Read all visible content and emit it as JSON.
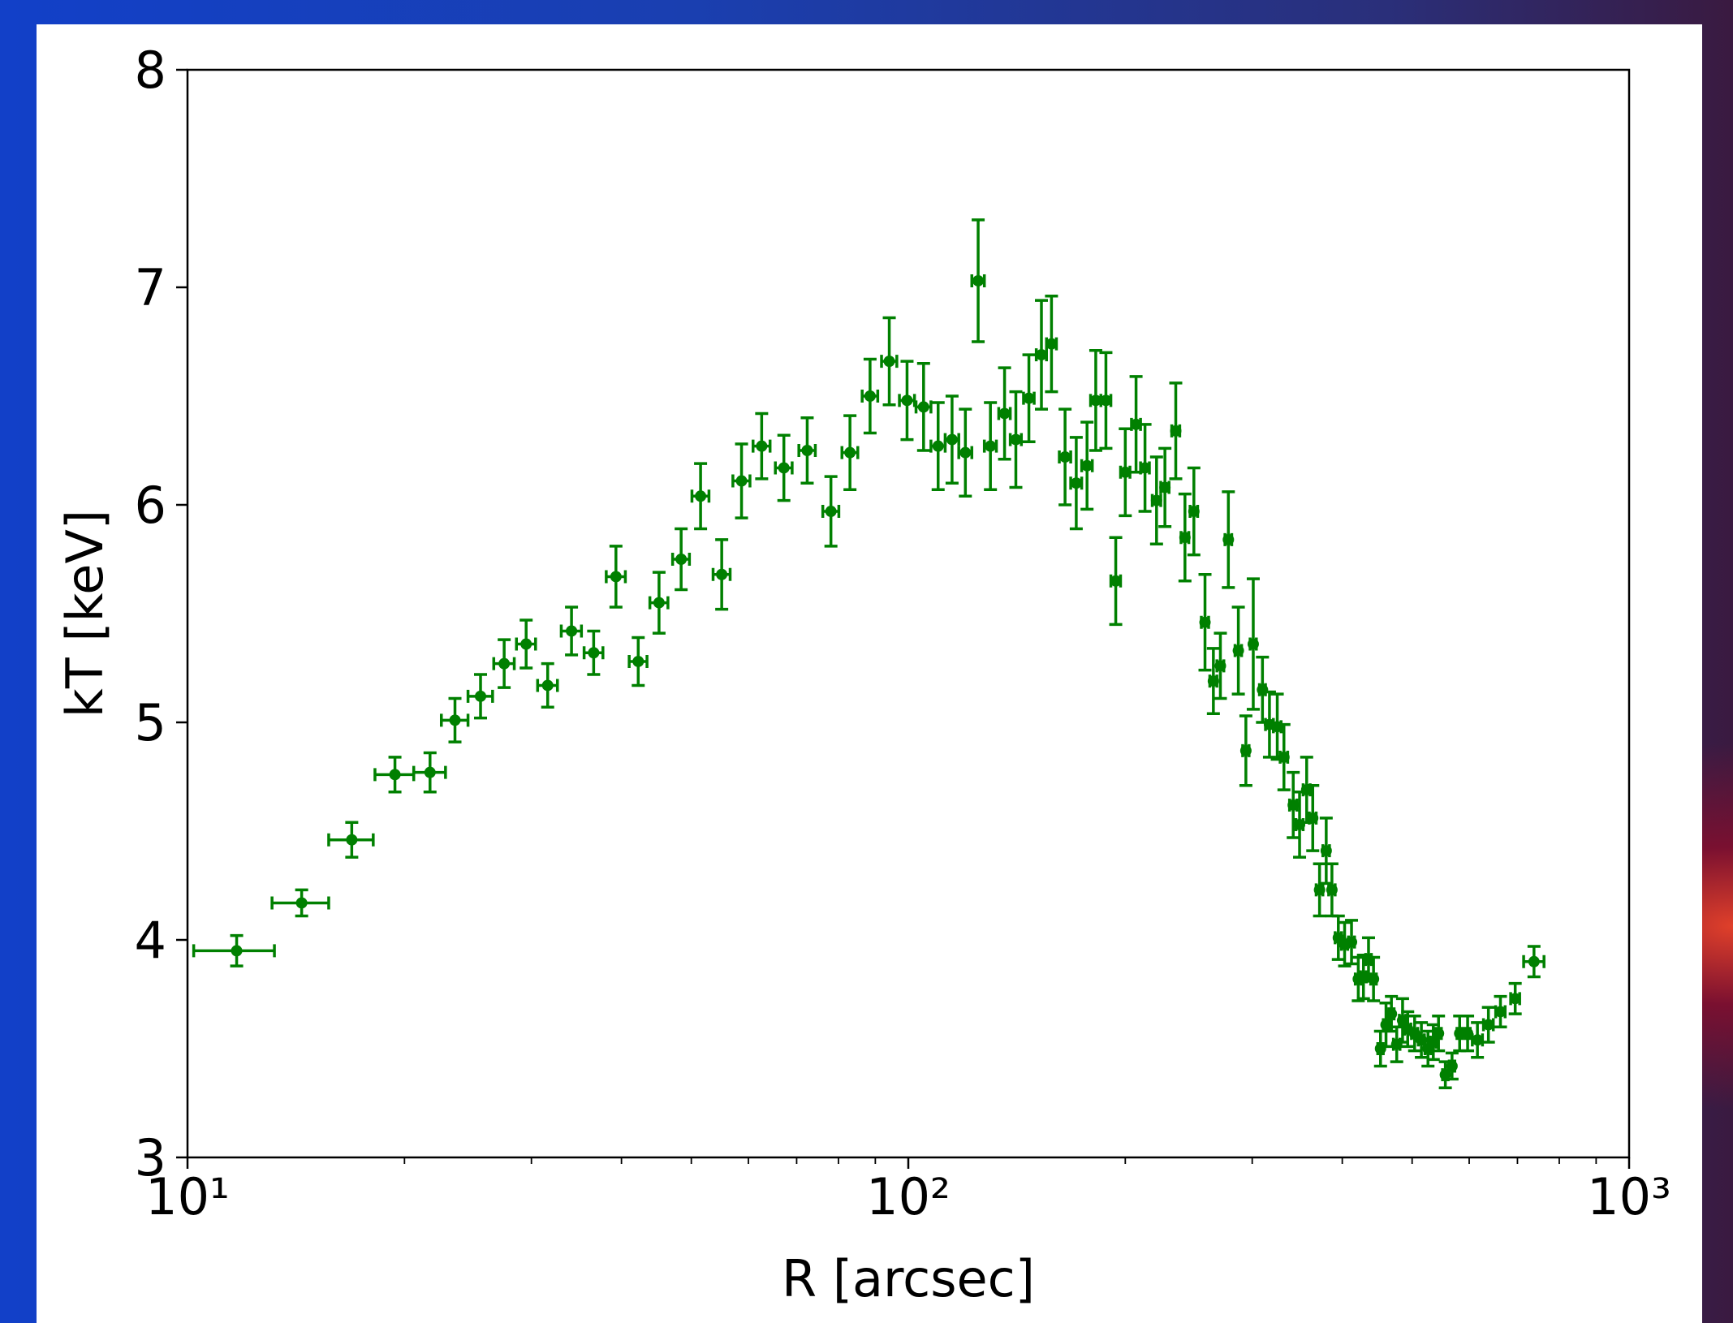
{
  "chart_data": {
    "type": "scatter",
    "xlabel": "R [arcsec]",
    "ylabel": "kT [keV]",
    "xscale": "log",
    "xlim": [
      10,
      1000
    ],
    "ylim": [
      3,
      8
    ],
    "xticks": [
      {
        "value": 10,
        "label": "10¹"
      },
      {
        "value": 100,
        "label": "10²"
      },
      {
        "value": 1000,
        "label": "10³"
      }
    ],
    "xminorticks": [
      20,
      30,
      40,
      50,
      60,
      70,
      80,
      90,
      200,
      300,
      400,
      500,
      600,
      700,
      800,
      900
    ],
    "yticks": [
      3,
      4,
      5,
      6,
      7,
      8
    ],
    "series": [
      {
        "color": "#008000",
        "x": [
          11.7,
          14.4,
          16.9,
          19.4,
          21.7,
          23.5,
          25.5,
          27.5,
          29.5,
          31.6,
          34.1,
          36.6,
          39.3,
          42.2,
          45.1,
          48.4,
          51.5,
          55.1,
          58.7,
          62.6,
          67.2,
          72.4,
          78.1,
          83.0,
          88.5,
          94.1,
          99.6,
          105,
          110,
          115,
          120,
          125,
          130,
          136,
          141,
          147,
          153,
          158,
          165,
          171,
          177,
          182,
          188,
          194,
          200,
          207,
          213,
          221,
          227,
          235,
          242,
          249,
          258,
          265,
          271,
          278,
          287,
          294,
          301,
          310,
          317,
          325,
          332,
          342,
          349,
          357,
          364,
          372,
          380,
          387,
          395,
          403,
          412,
          421,
          428,
          435,
          442,
          452,
          460,
          468,
          476,
          485,
          493,
          504,
          515,
          526,
          535,
          544,
          556,
          568,
          582,
          597,
          616,
          638,
          663,
          695,
          738
        ],
        "values": [
          3.95,
          4.17,
          4.46,
          4.76,
          4.77,
          5.01,
          5.12,
          5.27,
          5.36,
          5.17,
          5.42,
          5.32,
          5.67,
          5.28,
          5.55,
          5.75,
          6.04,
          5.68,
          6.11,
          6.27,
          6.17,
          6.25,
          5.97,
          6.24,
          6.5,
          6.66,
          6.48,
          6.45,
          6.27,
          6.3,
          6.24,
          7.03,
          6.27,
          6.42,
          6.3,
          6.49,
          6.69,
          6.74,
          6.22,
          6.1,
          6.18,
          6.48,
          6.48,
          5.65,
          6.15,
          6.37,
          6.17,
          6.02,
          6.08,
          6.34,
          5.85,
          5.97,
          5.46,
          5.19,
          5.26,
          5.84,
          5.33,
          4.87,
          5.36,
          5.15,
          4.99,
          4.98,
          4.84,
          4.62,
          4.53,
          4.69,
          4.56,
          4.23,
          4.41,
          4.23,
          4.01,
          3.98,
          3.99,
          3.82,
          3.83,
          3.91,
          3.82,
          3.5,
          3.61,
          3.66,
          3.52,
          3.63,
          3.59,
          3.57,
          3.54,
          3.5,
          3.53,
          3.57,
          3.38,
          3.42,
          3.57,
          3.57,
          3.54,
          3.61,
          3.67,
          3.73,
          3.9
        ],
        "xerr": [
          1.5,
          1.3,
          1.2,
          1.2,
          1.1,
          1.0,
          1.0,
          0.9,
          0.9,
          1.0,
          1.1,
          1.1,
          1.2,
          1.2,
          1.3,
          1.3,
          1.4,
          1.5,
          1.6,
          1.7,
          1.8,
          1.9,
          2.0,
          2.1,
          2.2,
          2.3,
          2.4,
          2.5,
          2.5,
          2.5,
          2.5,
          2.5,
          2.5,
          2.5,
          2.5,
          2.5,
          2.5,
          2.5,
          3,
          3,
          3,
          3,
          3,
          3,
          3,
          3,
          3,
          3,
          3,
          3,
          3,
          3,
          3,
          3,
          3,
          3,
          3,
          3,
          3,
          3,
          4,
          4,
          4,
          4,
          4,
          4,
          4,
          4,
          4,
          4,
          4,
          4,
          4,
          4,
          4,
          4,
          4,
          4,
          4,
          4,
          5,
          5,
          5,
          5,
          5,
          5,
          5,
          5,
          5,
          5,
          5,
          5,
          10,
          10,
          10,
          10,
          24
        ],
        "yerr": [
          0.07,
          0.06,
          0.08,
          0.08,
          0.09,
          0.1,
          0.1,
          0.11,
          0.11,
          0.1,
          0.11,
          0.1,
          0.14,
          0.11,
          0.14,
          0.14,
          0.15,
          0.16,
          0.17,
          0.15,
          0.15,
          0.15,
          0.16,
          0.17,
          0.17,
          0.2,
          0.18,
          0.2,
          0.2,
          0.2,
          0.2,
          0.28,
          0.2,
          0.21,
          0.22,
          0.2,
          0.25,
          0.22,
          0.22,
          0.21,
          0.2,
          0.23,
          0.22,
          0.2,
          0.2,
          0.22,
          0.2,
          0.2,
          0.18,
          0.22,
          0.2,
          0.2,
          0.22,
          0.15,
          0.15,
          0.22,
          0.2,
          0.16,
          0.3,
          0.15,
          0.15,
          0.15,
          0.15,
          0.15,
          0.15,
          0.15,
          0.15,
          0.12,
          0.15,
          0.12,
          0.1,
          0.1,
          0.1,
          0.1,
          0.1,
          0.1,
          0.1,
          0.08,
          0.1,
          0.08,
          0.08,
          0.1,
          0.08,
          0.08,
          0.08,
          0.08,
          0.08,
          0.08,
          0.06,
          0.06,
          0.08,
          0.08,
          0.08,
          0.08,
          0.07,
          0.07,
          0.07
        ]
      }
    ]
  }
}
